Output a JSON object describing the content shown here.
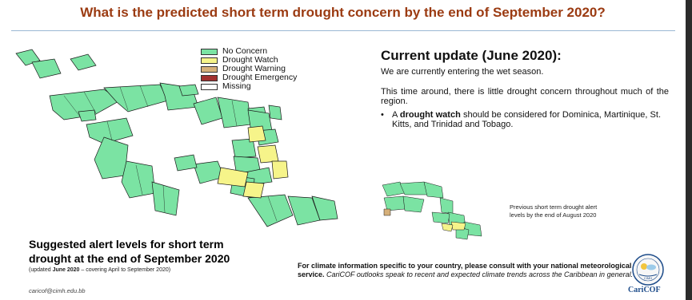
{
  "title": "What is the predicted short term drought concern by the end of September 2020?",
  "legend": [
    {
      "label": "No Concern",
      "color": "#7be3a3"
    },
    {
      "label": "Drought Watch",
      "color": "#f6f48a"
    },
    {
      "label": "Drought Warning",
      "color": "#d6b07a"
    },
    {
      "label": "Drought Emergency",
      "color": "#a1302f"
    },
    {
      "label": "Missing",
      "color": "#ffffff"
    }
  ],
  "update": {
    "heading": "Current update (June 2020):",
    "p1": "We are currently entering the wet season.",
    "p2": "This time around, there is little drought concern throughout much of the region.",
    "bullet_dot": "•",
    "bullet_pre": "A",
    "bullet_bold": "drought watch",
    "bullet_post": "should be considered for Dominica, Martinique, St. Kitts, and Trinidad and Tobago."
  },
  "suggested": {
    "line1": "Suggested alert levels for short term",
    "line2": "drought at the end of September 2020",
    "sub_pre": "(updated",
    "sub_bold": "June 2020",
    "sub_post": "– covering April to September 2020)"
  },
  "email": "caricof@cimh.edu.bb",
  "consult": {
    "bold": "For climate information specific to your country, please consult with your national meteorological service.",
    "italic": "CariCOF outlooks speak to recent and expected climate trends across the Caribbean in general."
  },
  "previous_caption": "Previous short term drought alert levels by the end of August 2020",
  "logo": {
    "seal": "CIMH",
    "name": "CariCOF"
  }
}
